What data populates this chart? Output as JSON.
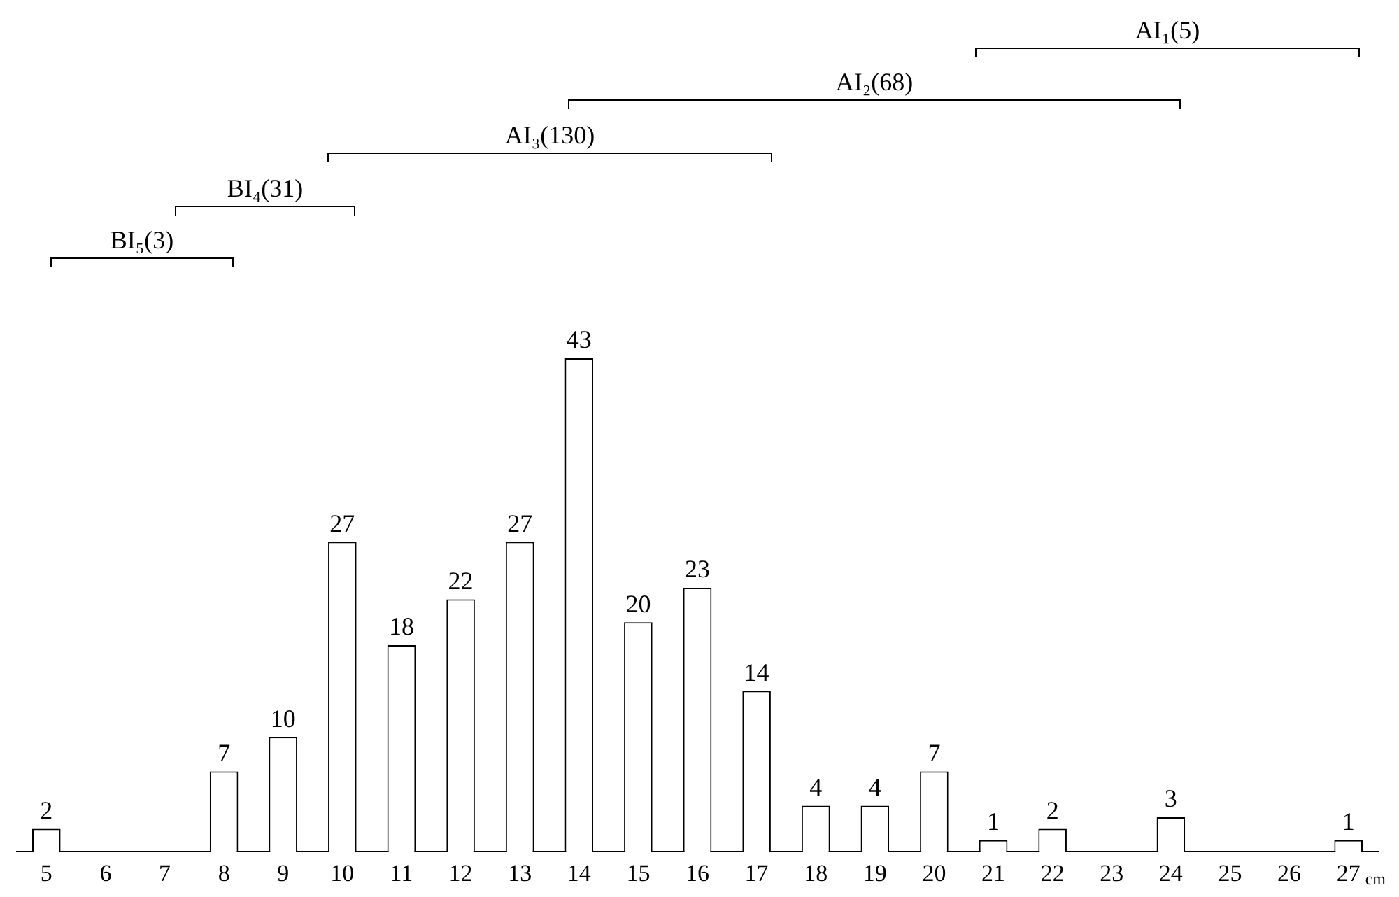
{
  "chart_data": {
    "type": "bar",
    "xlabel": "cm",
    "categories": [
      "5",
      "6",
      "7",
      "8",
      "9",
      "10",
      "11",
      "12",
      "13",
      "14",
      "15",
      "16",
      "17",
      "18",
      "19",
      "20",
      "21",
      "22",
      "23",
      "24",
      "25",
      "26",
      "27"
    ],
    "values": [
      2,
      null,
      null,
      7,
      10,
      27,
      18,
      22,
      27,
      43,
      20,
      23,
      14,
      4,
      4,
      7,
      1,
      2,
      null,
      3,
      null,
      null,
      1
    ],
    "color": "#ffffff",
    "data_labels": true,
    "grid": false,
    "legend": false,
    "tick_labels": "x",
    "annotations": [
      "AI₁(5)",
      "AI₂(68)",
      "AI₃(130)",
      "BI₄(31)",
      "BI₅(3)"
    ]
  }
}
